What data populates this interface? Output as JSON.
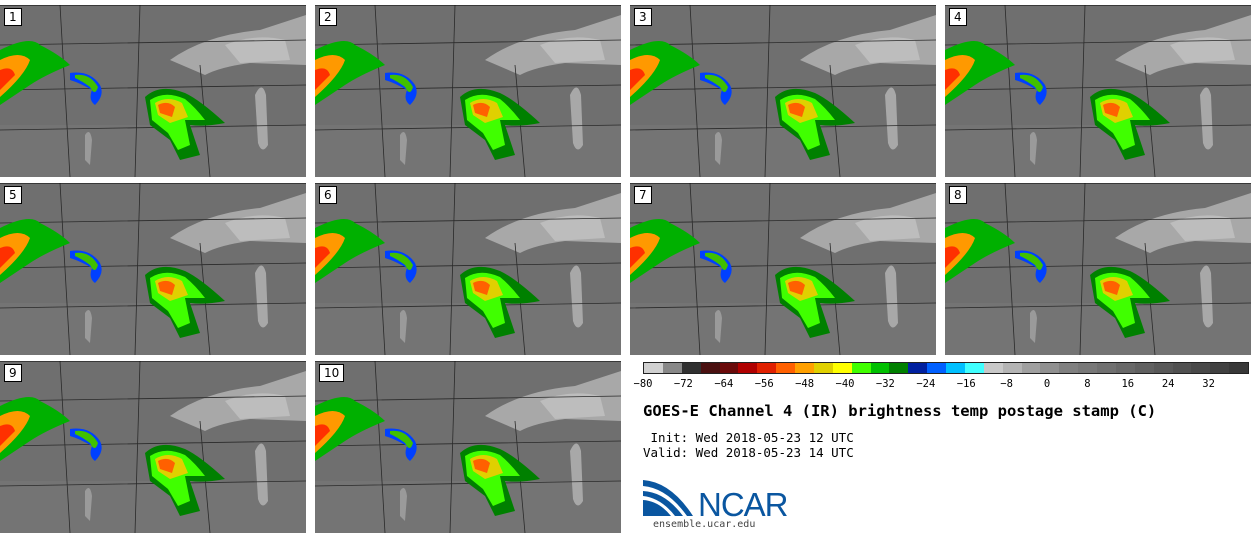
{
  "panels": [
    {
      "label": "1"
    },
    {
      "label": "2"
    },
    {
      "label": "3"
    },
    {
      "label": "4"
    },
    {
      "label": "5"
    },
    {
      "label": "6"
    },
    {
      "label": "7"
    },
    {
      "label": "8"
    },
    {
      "label": "9"
    },
    {
      "label": "10"
    }
  ],
  "colorbar": {
    "colors": [
      "#d0d0d0",
      "#888888",
      "#303030",
      "#4a1010",
      "#6a0a0a",
      "#b00000",
      "#e02000",
      "#ff6000",
      "#ffa000",
      "#e0d000",
      "#ffff00",
      "#40ff00",
      "#00c000",
      "#008000",
      "#0020a0",
      "#0060ff",
      "#00c0ff",
      "#40ffff",
      "#c8c8c8",
      "#b4b4b4",
      "#a0a0a0",
      "#909090",
      "#808080",
      "#787878",
      "#707070",
      "#686868",
      "#606060",
      "#585858",
      "#505050",
      "#484848",
      "#404040",
      "#383838"
    ],
    "tick_labels": [
      "−80",
      "−72",
      "−64",
      "−56",
      "−48",
      "−40",
      "−32",
      "−24",
      "−16",
      "−8",
      "0",
      "8",
      "16",
      "24",
      "32"
    ],
    "tick_values": [
      -80,
      -72,
      -64,
      -56,
      -48,
      -40,
      -32,
      -24,
      -16,
      -8,
      0,
      8,
      16,
      24,
      32
    ],
    "range": [
      -80,
      40
    ]
  },
  "title": "GOES-E Channel 4 (IR) brightness temp postage stamp (C)",
  "init_text": " Init: Wed 2018-05-23 12 UTC",
  "valid_text": "Valid: Wed 2018-05-23 14 UTC",
  "logo": {
    "text": "NCAR",
    "url": "ensemble.ucar.edu",
    "color": "#0a56a0"
  }
}
